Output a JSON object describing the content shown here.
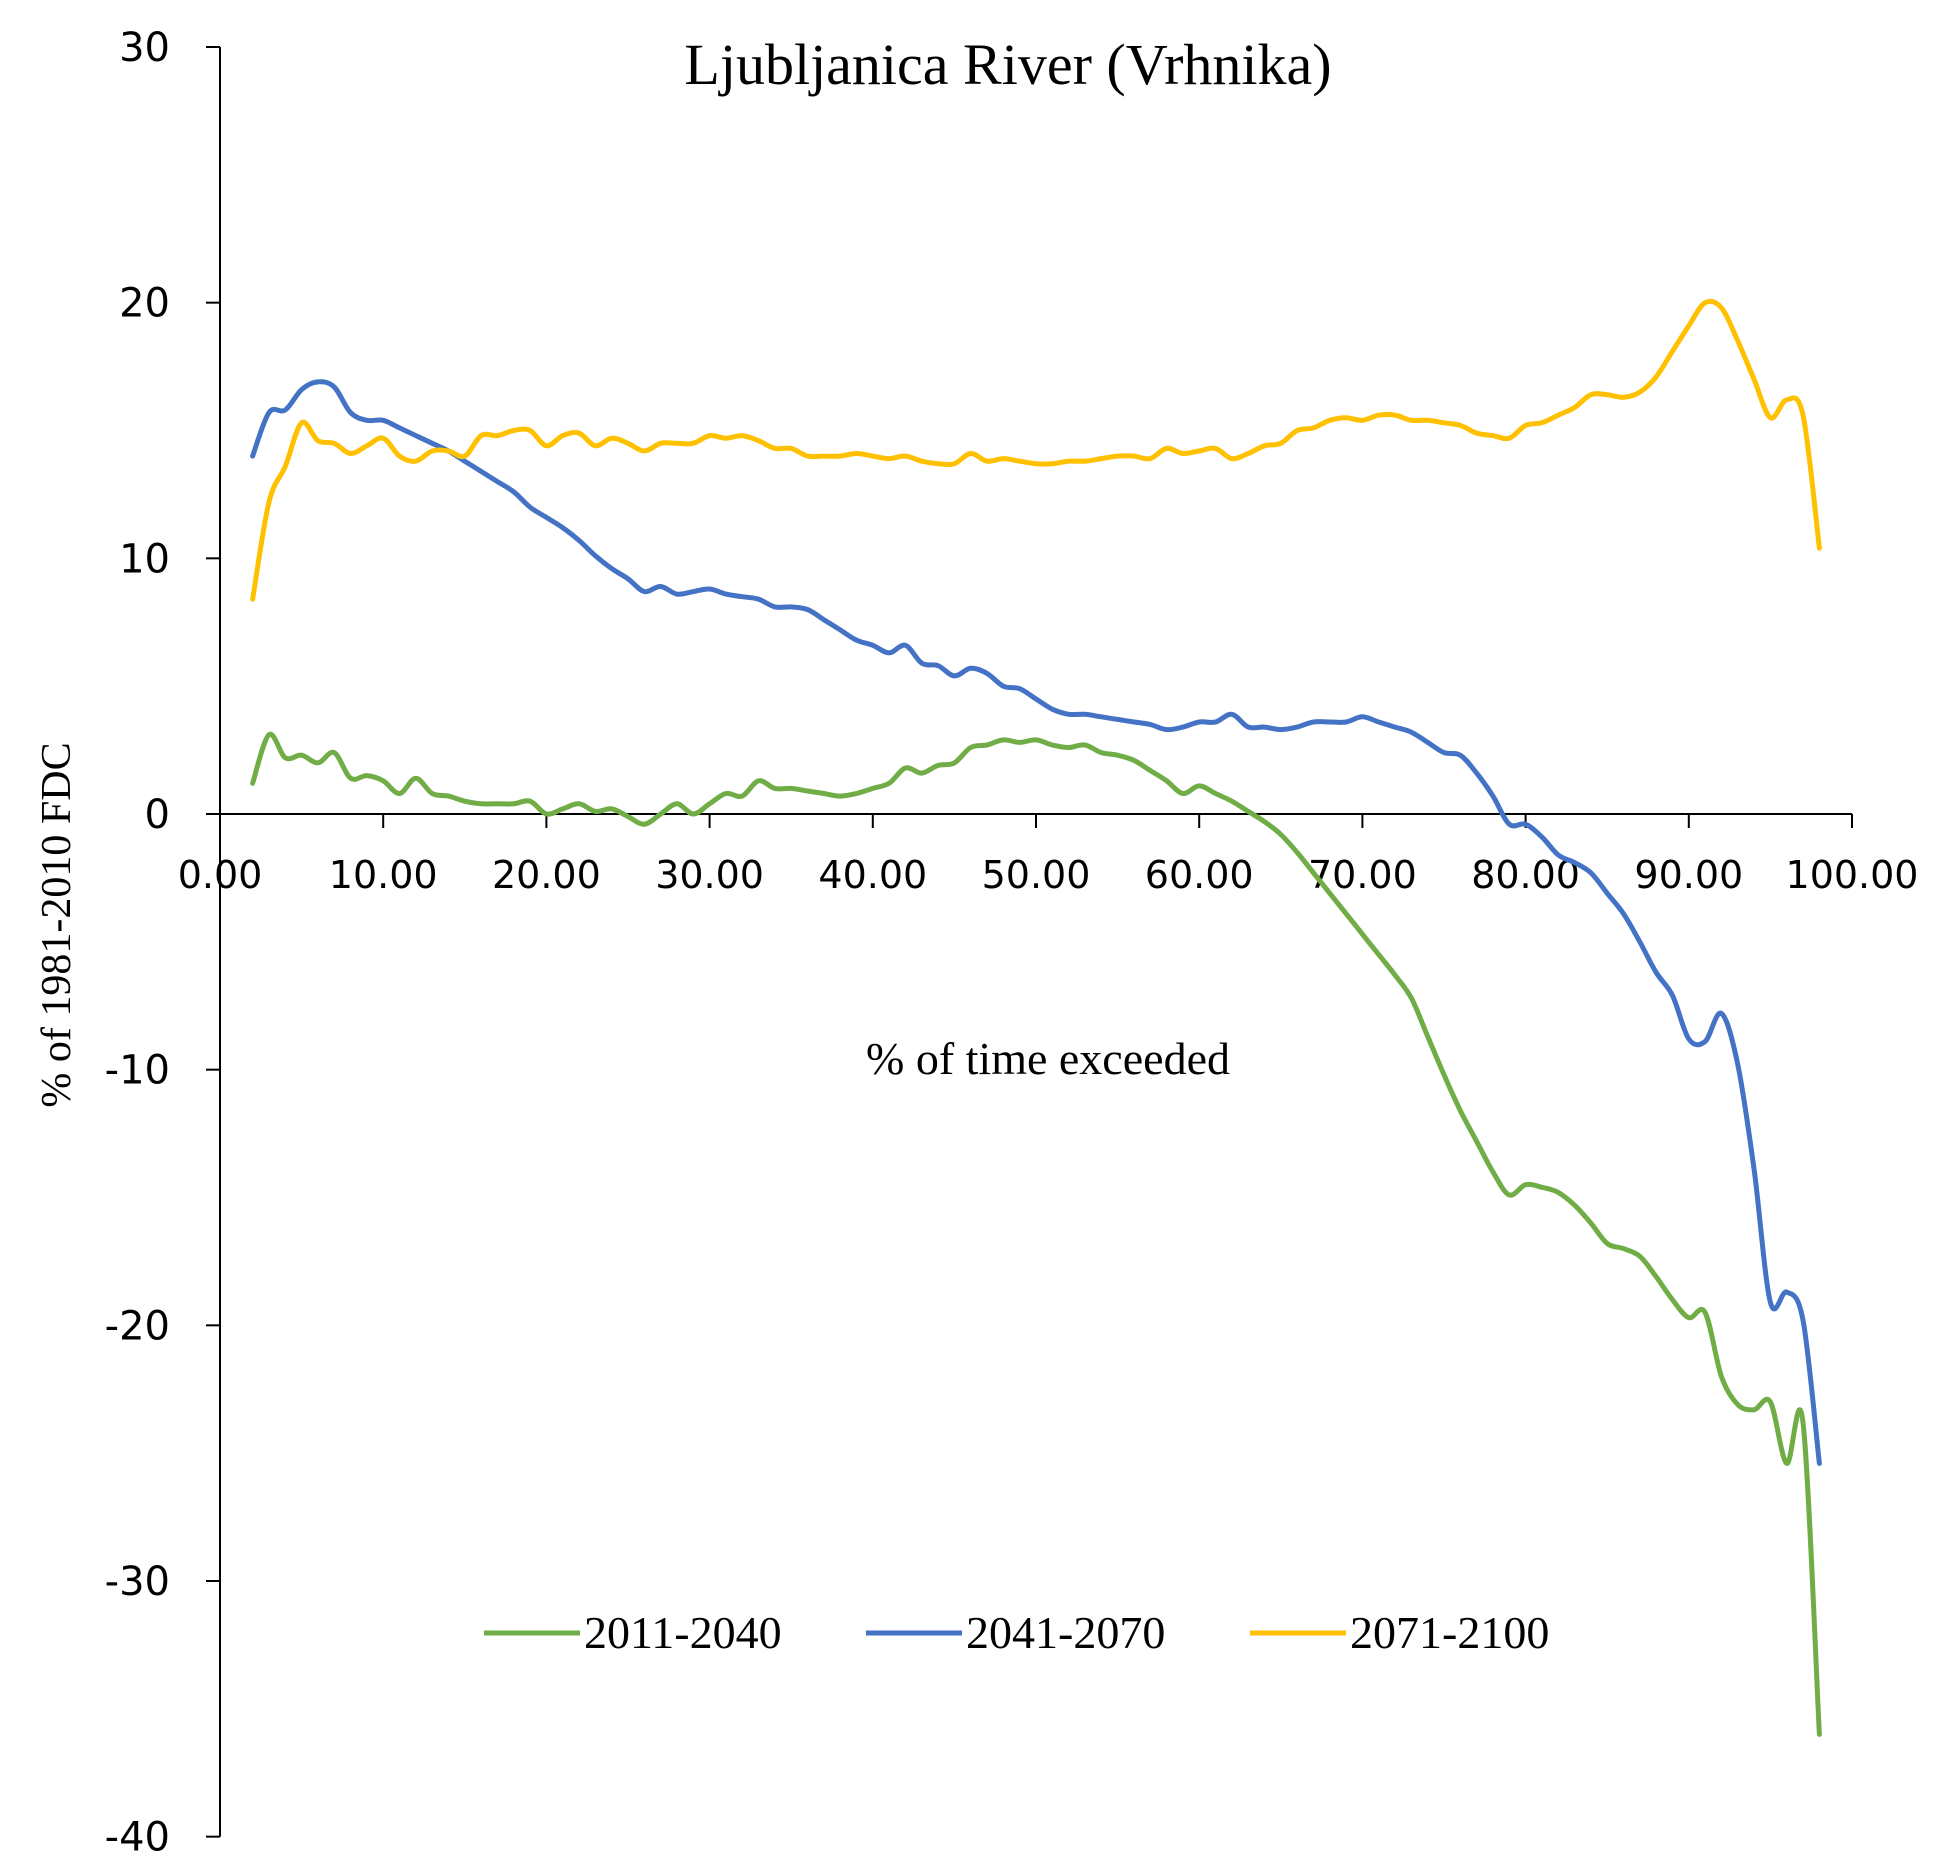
{
  "chart_data": {
    "type": "line",
    "title": "Ljubljanica River (Vrhnika)",
    "xlabel": "% of time exceeded",
    "ylabel": "% of 1981-2010 FDC",
    "xlim": [
      0,
      100
    ],
    "ylim": [
      -40,
      30
    ],
    "xticks": [
      0,
      10,
      20,
      30,
      40,
      50,
      60,
      70,
      80,
      90,
      100
    ],
    "xtick_labels": [
      "0.00",
      "10.00",
      "20.00",
      "30.00",
      "40.00",
      "50.00",
      "60.00",
      "70.00",
      "80.00",
      "90.00",
      "100.00"
    ],
    "yticks": [
      30,
      20,
      10,
      0,
      -10,
      -20,
      -30,
      -40
    ],
    "ytick_labels": [
      "30",
      "20",
      "10",
      "0",
      "-10",
      "-20",
      "-30",
      "-40"
    ],
    "legend_position": "bottom-center",
    "series": [
      {
        "name": "2011-2040",
        "color": "#70AD47",
        "x": [
          2,
          3,
          4,
          5,
          6,
          7,
          8,
          9,
          10,
          11,
          12,
          13,
          14,
          15,
          16,
          17,
          18,
          19,
          20,
          21,
          22,
          23,
          24,
          25,
          26,
          27,
          28,
          29,
          30,
          31,
          32,
          33,
          34,
          35,
          36,
          37,
          38,
          39,
          40,
          41,
          42,
          43,
          44,
          45,
          46,
          47,
          48,
          49,
          50,
          51,
          52,
          53,
          54,
          55,
          56,
          57,
          58,
          59,
          60,
          61,
          62,
          63,
          64,
          65,
          66,
          67,
          68,
          69,
          70,
          71,
          72,
          73,
          74,
          75,
          76,
          77,
          78,
          79,
          80,
          81,
          82,
          83,
          84,
          85,
          86,
          87,
          88,
          89,
          90,
          91,
          92,
          93,
          94,
          95,
          96,
          97,
          98
        ],
        "values": [
          1.2,
          3.1,
          2.2,
          2.3,
          2.0,
          2.4,
          1.4,
          1.5,
          1.3,
          0.8,
          1.4,
          0.8,
          0.7,
          0.5,
          0.4,
          0.4,
          0.4,
          0.5,
          0.0,
          0.2,
          0.4,
          0.1,
          0.2,
          -0.1,
          -0.4,
          0.0,
          0.4,
          0.0,
          0.4,
          0.8,
          0.7,
          1.3,
          1.0,
          1.0,
          0.9,
          0.8,
          0.7,
          0.8,
          1.0,
          1.2,
          1.8,
          1.6,
          1.9,
          2.0,
          2.6,
          2.7,
          2.9,
          2.8,
          2.9,
          2.7,
          2.6,
          2.7,
          2.4,
          2.3,
          2.1,
          1.7,
          1.3,
          0.8,
          1.1,
          0.8,
          0.5,
          0.1,
          -0.3,
          -0.8,
          -1.5,
          -2.3,
          -3.1,
          -3.9,
          -4.7,
          -5.5,
          -6.3,
          -7.2,
          -8.7,
          -10.2,
          -11.6,
          -12.8,
          -14.0,
          -14.9,
          -14.5,
          -14.6,
          -14.8,
          -15.3,
          -16.0,
          -16.8,
          -17.0,
          -17.3,
          -18.1,
          -19.0,
          -19.7,
          -19.5,
          -22.0,
          -23.1,
          -23.3,
          -23.0,
          -25.4,
          -23.8,
          -36.0
        ]
      },
      {
        "name": "2041-2070",
        "color": "#4472C4",
        "x": [
          2,
          3,
          4,
          5,
          6,
          7,
          8,
          9,
          10,
          11,
          12,
          13,
          14,
          15,
          16,
          17,
          18,
          19,
          20,
          21,
          22,
          23,
          24,
          25,
          26,
          27,
          28,
          29,
          30,
          31,
          32,
          33,
          34,
          35,
          36,
          37,
          38,
          39,
          40,
          41,
          42,
          43,
          44,
          45,
          46,
          47,
          48,
          49,
          50,
          51,
          52,
          53,
          54,
          55,
          56,
          57,
          58,
          59,
          60,
          61,
          62,
          63,
          64,
          65,
          66,
          67,
          68,
          69,
          70,
          71,
          72,
          73,
          74,
          75,
          76,
          77,
          78,
          79,
          80,
          81,
          82,
          83,
          84,
          85,
          86,
          87,
          88,
          89,
          90,
          91,
          92,
          93,
          94,
          95,
          96,
          97,
          98
        ],
        "values": [
          14.0,
          15.7,
          15.8,
          16.6,
          16.9,
          16.7,
          15.7,
          15.4,
          15.4,
          15.1,
          14.8,
          14.5,
          14.2,
          13.8,
          13.4,
          13.0,
          12.6,
          12.0,
          11.6,
          11.2,
          10.7,
          10.1,
          9.6,
          9.2,
          8.7,
          8.9,
          8.6,
          8.7,
          8.8,
          8.6,
          8.5,
          8.4,
          8.1,
          8.1,
          8.0,
          7.6,
          7.2,
          6.8,
          6.6,
          6.3,
          6.6,
          5.9,
          5.8,
          5.4,
          5.7,
          5.5,
          5.0,
          4.9,
          4.5,
          4.1,
          3.9,
          3.9,
          3.8,
          3.7,
          3.6,
          3.5,
          3.3,
          3.4,
          3.6,
          3.6,
          3.9,
          3.4,
          3.4,
          3.3,
          3.4,
          3.6,
          3.6,
          3.6,
          3.8,
          3.6,
          3.4,
          3.2,
          2.8,
          2.4,
          2.3,
          1.6,
          0.7,
          -0.4,
          -0.4,
          -0.9,
          -1.6,
          -1.9,
          -2.3,
          -3.1,
          -3.9,
          -5.0,
          -6.2,
          -7.1,
          -8.8,
          -8.9,
          -7.8,
          -9.8,
          -13.9,
          -19.1,
          -18.7,
          -19.8,
          -25.4
        ]
      },
      {
        "name": "2071-2100",
        "color": "#FFC000",
        "x": [
          2,
          3,
          4,
          5,
          6,
          7,
          8,
          9,
          10,
          11,
          12,
          13,
          14,
          15,
          16,
          17,
          18,
          19,
          20,
          21,
          22,
          23,
          24,
          25,
          26,
          27,
          28,
          29,
          30,
          31,
          32,
          33,
          34,
          35,
          36,
          37,
          38,
          39,
          40,
          41,
          42,
          43,
          44,
          45,
          46,
          47,
          48,
          49,
          50,
          51,
          52,
          53,
          54,
          55,
          56,
          57,
          58,
          59,
          60,
          61,
          62,
          63,
          64,
          65,
          66,
          67,
          68,
          69,
          70,
          71,
          72,
          73,
          74,
          75,
          76,
          77,
          78,
          79,
          80,
          81,
          82,
          83,
          84,
          85,
          86,
          87,
          88,
          89,
          90,
          91,
          92,
          93,
          94,
          95,
          96,
          97,
          98
        ],
        "values": [
          8.4,
          12.2,
          13.6,
          15.3,
          14.6,
          14.5,
          14.1,
          14.4,
          14.7,
          14.0,
          13.8,
          14.2,
          14.2,
          14.0,
          14.8,
          14.8,
          15.0,
          15.0,
          14.4,
          14.8,
          14.9,
          14.4,
          14.7,
          14.5,
          14.2,
          14.5,
          14.5,
          14.5,
          14.8,
          14.7,
          14.8,
          14.6,
          14.3,
          14.3,
          14.0,
          14.0,
          14.0,
          14.1,
          14.0,
          13.9,
          14.0,
          13.8,
          13.7,
          13.7,
          14.1,
          13.8,
          13.9,
          13.8,
          13.7,
          13.7,
          13.8,
          13.8,
          13.9,
          14.0,
          14.0,
          13.9,
          14.3,
          14.1,
          14.2,
          14.3,
          13.9,
          14.1,
          14.4,
          14.5,
          15.0,
          15.1,
          15.4,
          15.5,
          15.4,
          15.6,
          15.6,
          15.4,
          15.4,
          15.3,
          15.2,
          14.9,
          14.8,
          14.7,
          15.2,
          15.3,
          15.6,
          15.9,
          16.4,
          16.4,
          16.3,
          16.5,
          17.1,
          18.1,
          19.1,
          20.0,
          19.8,
          18.5,
          17.0,
          15.5,
          16.2,
          15.6,
          10.4
        ]
      }
    ]
  }
}
